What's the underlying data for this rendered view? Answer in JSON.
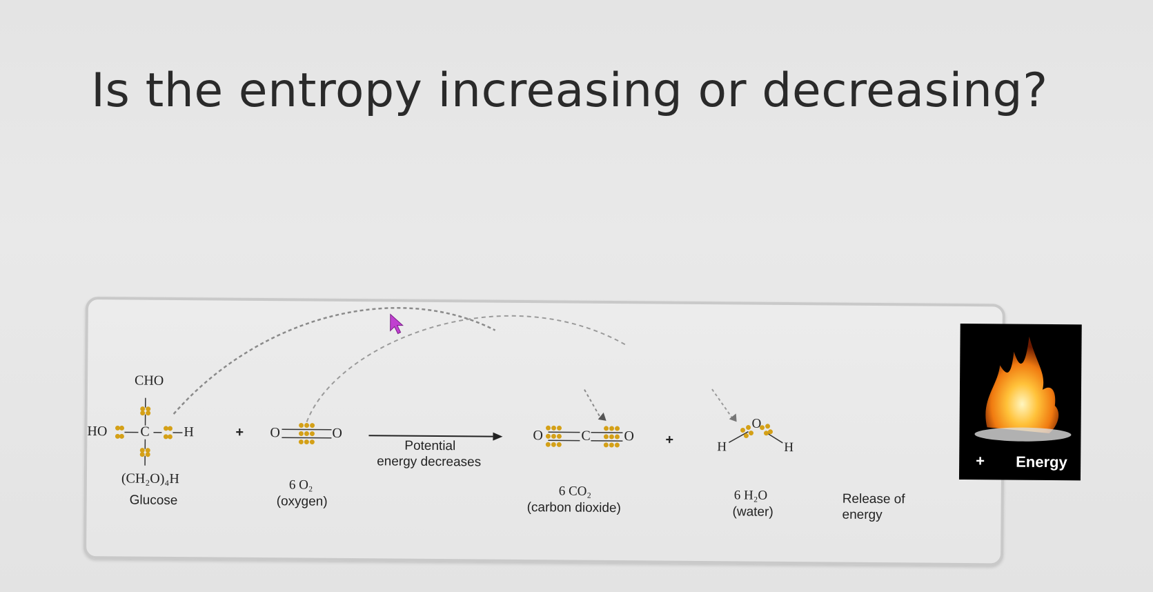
{
  "question": "Is the entropy increasing or decreasing?",
  "glucose": {
    "top_group": "CHO",
    "left_group": "HO",
    "center_atom": "C",
    "right_atom": "H",
    "bottom_group": "(CH₂O)₄H",
    "name": "Glucose"
  },
  "plus_1": "+",
  "oxygen": {
    "left_atom": "O",
    "right_atom": "O",
    "formula": "6 O₂",
    "name": "(oxygen)"
  },
  "arrow_label_line1": "Potential",
  "arrow_label_line2": "energy decreases",
  "carbon_dioxide": {
    "left_atom": "O",
    "center_atom": "C",
    "right_atom": "O",
    "formula": "6 CO₂",
    "name": "(carbon dioxide)"
  },
  "plus_2": "+",
  "water": {
    "left_atom": "H",
    "center_atom": "O",
    "right_atom": "H",
    "formula": "6 H₂O",
    "name": "(water)"
  },
  "energy": {
    "plus": "+",
    "label": "Energy",
    "caption_line1": "Release of",
    "caption_line2": "energy"
  },
  "colors": {
    "electron": "#d4a017",
    "dashed": "#8a8a8a",
    "cursor": "#c040d0"
  }
}
